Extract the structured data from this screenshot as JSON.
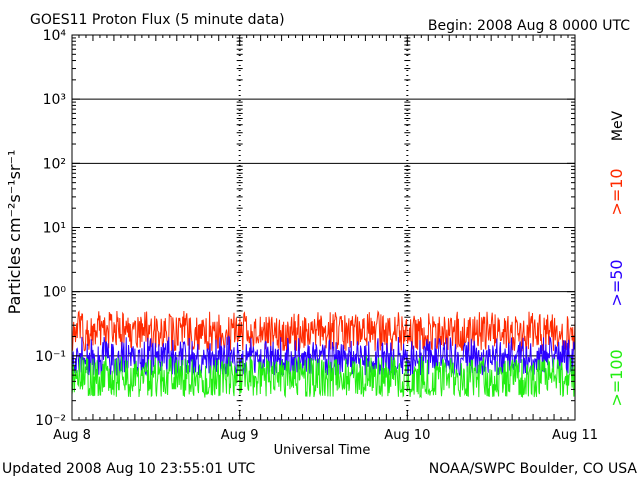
{
  "header": {
    "title": "GOES11 Proton Flux (5 minute data)",
    "begin": "Begin: 2008 Aug 8 0000 UTC"
  },
  "footer": {
    "updated": "Updated 2008 Aug 10 23:55:01 UTC",
    "credit": "NOAA/SWPC Boulder, CO USA"
  },
  "chart_data": {
    "type": "line",
    "title": "GOES11 Proton Flux (5 minute data)",
    "xlabel": "Universal Time",
    "ylabel": "Particles cm⁻²s⁻¹sr⁻¹",
    "yscale": "log",
    "ylim": [
      0.01,
      10000
    ],
    "y_ticks": [
      "10⁻²",
      "10⁻¹",
      "10⁰",
      "10¹",
      "10²",
      "10³",
      "10⁴"
    ],
    "x_ticks": [
      "Aug 8",
      "Aug 9",
      "Aug 10",
      "Aug 11"
    ],
    "xlim": [
      "2008-08-08",
      "2008-08-11"
    ],
    "threshold_lines": [
      {
        "y": 1000,
        "style": "solid"
      },
      {
        "y": 100,
        "style": "solid"
      },
      {
        "y": 10,
        "style": "dashed"
      },
      {
        "y": 1,
        "style": "solid"
      },
      {
        "y": 0.1,
        "style": "solid"
      }
    ],
    "units_label": "MeV",
    "series": [
      {
        "name": ">=10",
        "color": "#ff2a00",
        "typical_range": [
          0.12,
          0.5
        ],
        "center": 0.22
      },
      {
        "name": ">=50",
        "color": "#2a00ff",
        "typical_range": [
          0.05,
          0.2
        ],
        "center": 0.09
      },
      {
        "name": ">=100",
        "color": "#22ee11",
        "typical_range": [
          0.022,
          0.1
        ],
        "center": 0.045
      }
    ]
  }
}
